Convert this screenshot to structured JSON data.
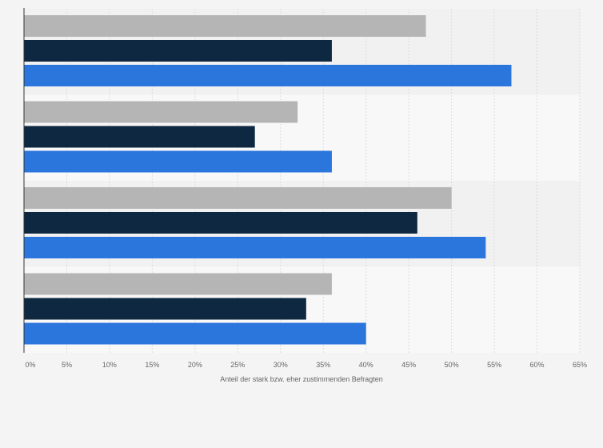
{
  "chart_data": {
    "type": "bar",
    "orientation": "horizontal",
    "categories": [
      "",
      "",
      "",
      ""
    ],
    "series": [
      {
        "color": "#b5b5b5",
        "values": [
          47,
          32,
          50,
          36
        ]
      },
      {
        "color": "#0f2841",
        "values": [
          36,
          27,
          46,
          33
        ]
      },
      {
        "color": "#2a76dd",
        "values": [
          57,
          36,
          54,
          40
        ]
      }
    ],
    "xlabel": "Anteil der stark bzw. eher zustimmenden Befragten",
    "xlim": [
      0,
      65
    ],
    "xticks": [
      "0%",
      "5%",
      "10%",
      "15%",
      "20%",
      "25%",
      "30%",
      "35%",
      "40%",
      "45%",
      "50%",
      "55%",
      "60%",
      "65%"
    ],
    "grid": true,
    "legend": "none"
  }
}
